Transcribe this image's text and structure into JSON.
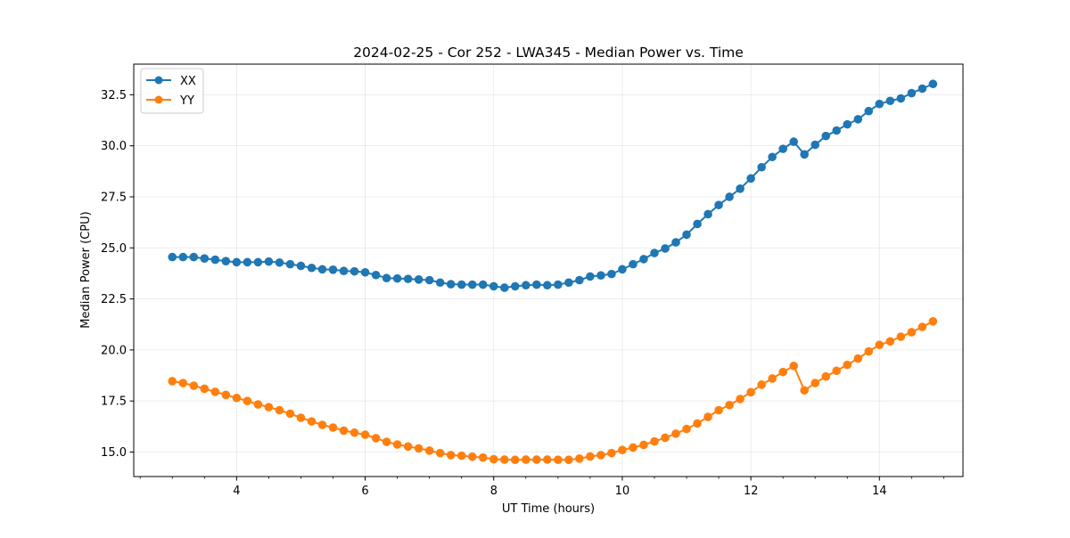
{
  "chart_data": {
    "type": "line",
    "title": "2024-02-25 - Cor 252 - LWA345 - Median Power vs. Time",
    "xlabel": "UT Time (hours)",
    "ylabel": "Median Power (CPU)",
    "xlim": [
      2.4,
      15.3
    ],
    "ylim": [
      13.8,
      34.0
    ],
    "xticks": [
      4,
      6,
      8,
      10,
      12,
      14
    ],
    "xtick_labels": [
      "4",
      "6",
      "8",
      "10",
      "12",
      "14"
    ],
    "xminor_step": 0.5,
    "yticks": [
      15.0,
      17.5,
      20.0,
      22.5,
      25.0,
      27.5,
      30.0,
      32.5
    ],
    "ytick_labels": [
      "15.0",
      "17.5",
      "20.0",
      "22.5",
      "25.0",
      "27.5",
      "30.0",
      "32.5"
    ],
    "grid": true,
    "legend_position": "top-left",
    "x": [
      3.0,
      3.167,
      3.333,
      3.5,
      3.667,
      3.833,
      4.0,
      4.167,
      4.333,
      4.5,
      4.667,
      4.833,
      5.0,
      5.167,
      5.333,
      5.5,
      5.667,
      5.833,
      6.0,
      6.167,
      6.333,
      6.5,
      6.667,
      6.833,
      7.0,
      7.167,
      7.333,
      7.5,
      7.667,
      7.833,
      8.0,
      8.167,
      8.333,
      8.5,
      8.667,
      8.833,
      9.0,
      9.167,
      9.333,
      9.5,
      9.667,
      9.833,
      10.0,
      10.167,
      10.333,
      10.5,
      10.667,
      10.833,
      11.0,
      11.167,
      11.333,
      11.5,
      11.667,
      11.833,
      12.0,
      12.167,
      12.333,
      12.5,
      12.667,
      12.833,
      13.0,
      13.167,
      13.333,
      13.5,
      13.667,
      13.833,
      14.0,
      14.167,
      14.333,
      14.5,
      14.667,
      14.833
    ],
    "series": [
      {
        "name": "XX",
        "color": "#1f77b4",
        "values": [
          24.55,
          24.55,
          24.55,
          24.48,
          24.42,
          24.35,
          24.3,
          24.3,
          24.3,
          24.33,
          24.28,
          24.2,
          24.12,
          24.02,
          23.95,
          23.93,
          23.87,
          23.85,
          23.8,
          23.67,
          23.52,
          23.5,
          23.48,
          23.45,
          23.42,
          23.3,
          23.22,
          23.2,
          23.2,
          23.2,
          23.12,
          23.05,
          23.12,
          23.17,
          23.2,
          23.17,
          23.2,
          23.3,
          23.42,
          23.6,
          23.65,
          23.72,
          23.95,
          24.2,
          24.45,
          24.75,
          24.97,
          25.27,
          25.65,
          26.17,
          26.65,
          27.1,
          27.5,
          27.9,
          28.4,
          28.95,
          29.45,
          29.85,
          30.2,
          29.58,
          30.05,
          30.48,
          30.75,
          31.05,
          31.3,
          31.7,
          32.05,
          32.2,
          32.32,
          32.58,
          32.8,
          33.03
        ]
      },
      {
        "name": "YY",
        "color": "#ff7f0e",
        "values": [
          18.47,
          18.38,
          18.25,
          18.1,
          17.95,
          17.8,
          17.65,
          17.5,
          17.33,
          17.2,
          17.05,
          16.88,
          16.68,
          16.5,
          16.33,
          16.2,
          16.05,
          15.95,
          15.85,
          15.68,
          15.5,
          15.37,
          15.27,
          15.18,
          15.07,
          14.95,
          14.85,
          14.82,
          14.77,
          14.73,
          14.65,
          14.63,
          14.62,
          14.63,
          14.63,
          14.63,
          14.62,
          14.62,
          14.68,
          14.78,
          14.85,
          14.95,
          15.1,
          15.22,
          15.35,
          15.52,
          15.7,
          15.9,
          16.13,
          16.4,
          16.72,
          17.05,
          17.3,
          17.6,
          17.93,
          18.3,
          18.6,
          18.92,
          19.22,
          18.02,
          18.38,
          18.7,
          18.98,
          19.27,
          19.58,
          19.93,
          20.25,
          20.42,
          20.65,
          20.87,
          21.13,
          21.4
        ]
      }
    ]
  }
}
